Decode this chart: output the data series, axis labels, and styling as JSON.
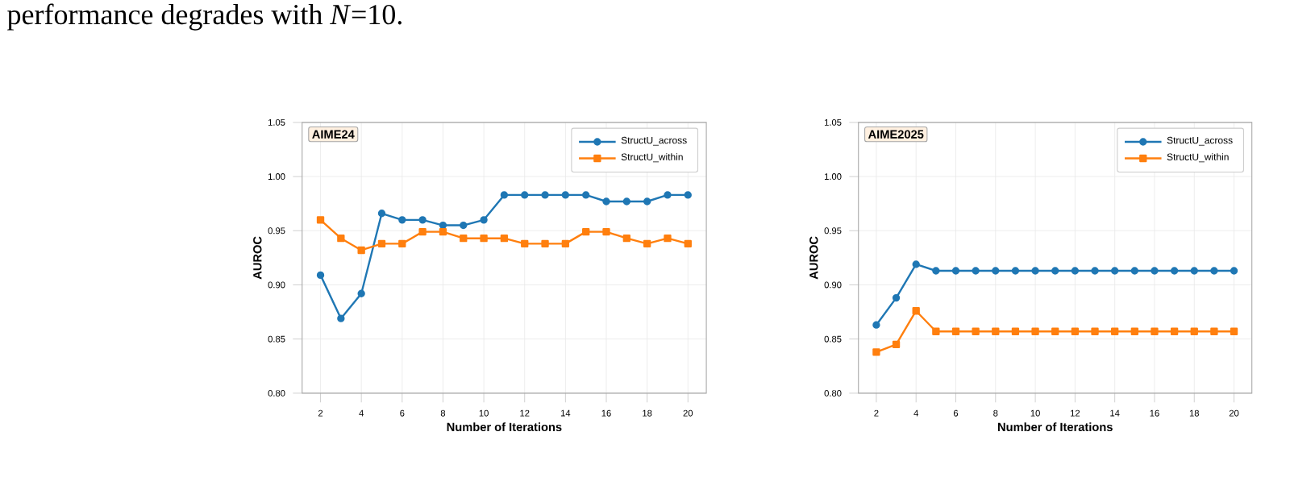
{
  "chart_data": [
    {
      "type": "line",
      "title": "AIME24",
      "xlabel": "Number of Iterations",
      "ylabel": "AUROC",
      "annotations": [
        "performance degrades with *N*=10."
      ],
      "x": [
        2,
        3,
        4,
        5,
        6,
        7,
        8,
        9,
        10,
        11,
        12,
        13,
        14,
        15,
        16,
        17,
        18,
        19,
        20
      ],
      "series": [
        {
          "name": "StructU_across",
          "color": "#1f77b4",
          "marker": "circle",
          "values": [
            0.909,
            0.869,
            0.892,
            0.966,
            0.96,
            0.96,
            0.955,
            0.955,
            0.96,
            0.983,
            0.983,
            0.983,
            0.983,
            0.983,
            0.977,
            0.977,
            0.977,
            0.983,
            0.983
          ]
        },
        {
          "name": "StructU_within",
          "color": "#ff7f0e",
          "marker": "square",
          "values": [
            0.96,
            0.943,
            0.932,
            0.938,
            0.938,
            0.949,
            0.949,
            0.943,
            0.943,
            0.943,
            0.938,
            0.938,
            0.938,
            0.949,
            0.949,
            0.943,
            0.938,
            0.943,
            0.938
          ]
        }
      ],
      "xlim": [
        1.1,
        20.9
      ],
      "ylim": [
        0.8,
        1.05
      ],
      "xticks": [
        2,
        4,
        6,
        8,
        10,
        12,
        14,
        16,
        18,
        20
      ],
      "yticks": [
        {
          "value": 0.8,
          "label": "0.80"
        },
        {
          "value": 0.85,
          "label": "0.85"
        },
        {
          "value": 0.9,
          "label": "0.90"
        },
        {
          "value": 0.95,
          "label": "0.95"
        },
        {
          "value": 1.0,
          "label": "1.00"
        },
        {
          "value": 1.05,
          "label": "1.05"
        }
      ],
      "grid": true,
      "legend": "top right"
    },
    {
      "type": "line",
      "title": "AIME2025",
      "xlabel": "Number of Iterations",
      "ylabel": "AUROC",
      "x": [
        2,
        3,
        4,
        5,
        6,
        7,
        8,
        9,
        10,
        11,
        12,
        13,
        14,
        15,
        16,
        17,
        18,
        19,
        20
      ],
      "series": [
        {
          "name": "StructU_across",
          "color": "#1f77b4",
          "marker": "circle",
          "values": [
            0.863,
            0.888,
            0.919,
            0.913,
            0.913,
            0.913,
            0.913,
            0.913,
            0.913,
            0.913,
            0.913,
            0.913,
            0.913,
            0.913,
            0.913,
            0.913,
            0.913,
            0.913,
            0.913
          ]
        },
        {
          "name": "StructU_within",
          "color": "#ff7f0e",
          "marker": "square",
          "values": [
            0.838,
            0.845,
            0.876,
            0.857,
            0.857,
            0.857,
            0.857,
            0.857,
            0.857,
            0.857,
            0.857,
            0.857,
            0.857,
            0.857,
            0.857,
            0.857,
            0.857,
            0.857,
            0.857
          ]
        }
      ],
      "xlim": [
        1.1,
        20.9
      ],
      "ylim": [
        0.8,
        1.05
      ],
      "xticks": [
        2,
        4,
        6,
        8,
        10,
        12,
        14,
        16,
        18,
        20
      ],
      "yticks": [
        {
          "value": 0.8,
          "label": "0.80"
        },
        {
          "value": 0.85,
          "label": "0.85"
        },
        {
          "value": 0.9,
          "label": "0.90"
        },
        {
          "value": 0.95,
          "label": "0.95"
        },
        {
          "value": 1.0,
          "label": "1.00"
        },
        {
          "value": 1.05,
          "label": "1.05"
        }
      ],
      "grid": true,
      "legend": "top right"
    }
  ]
}
